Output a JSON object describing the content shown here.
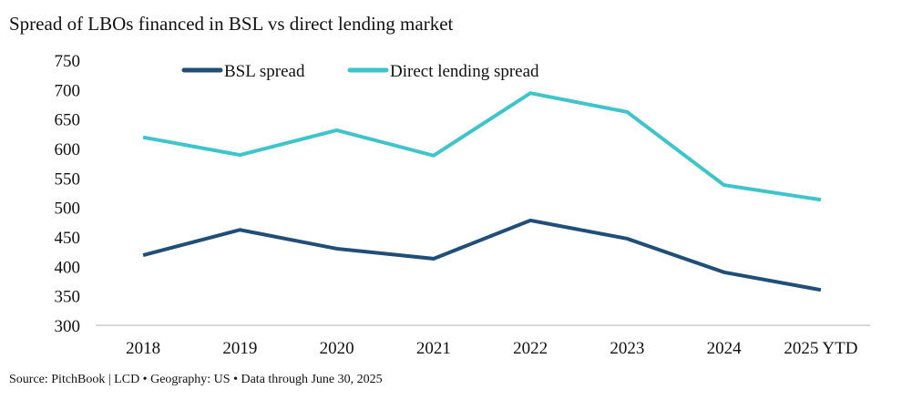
{
  "chart_data": {
    "type": "line",
    "title": "Spread of LBOs financed in BSL vs direct lending market",
    "categories": [
      "2018",
      "2019",
      "2020",
      "2021",
      "2022",
      "2023",
      "2024",
      "2025 YTD"
    ],
    "series": [
      {
        "name": "BSL spread",
        "color": "#1f4e79",
        "values": [
          419,
          462,
          430,
          413,
          478,
          447,
          390,
          360
        ]
      },
      {
        "name": "Direct lending spread",
        "color": "#3ec5cc",
        "values": [
          619,
          589,
          631,
          588,
          694,
          662,
          538,
          513
        ]
      }
    ],
    "ylim": [
      300,
      750
    ],
    "yticks": [
      300,
      350,
      400,
      450,
      500,
      550,
      600,
      650,
      700,
      750
    ],
    "grid": false,
    "legend": "top",
    "xlabel": "",
    "ylabel": ""
  },
  "source": "Source: PitchBook | LCD • Geography: US • Data through June 30, 2025"
}
